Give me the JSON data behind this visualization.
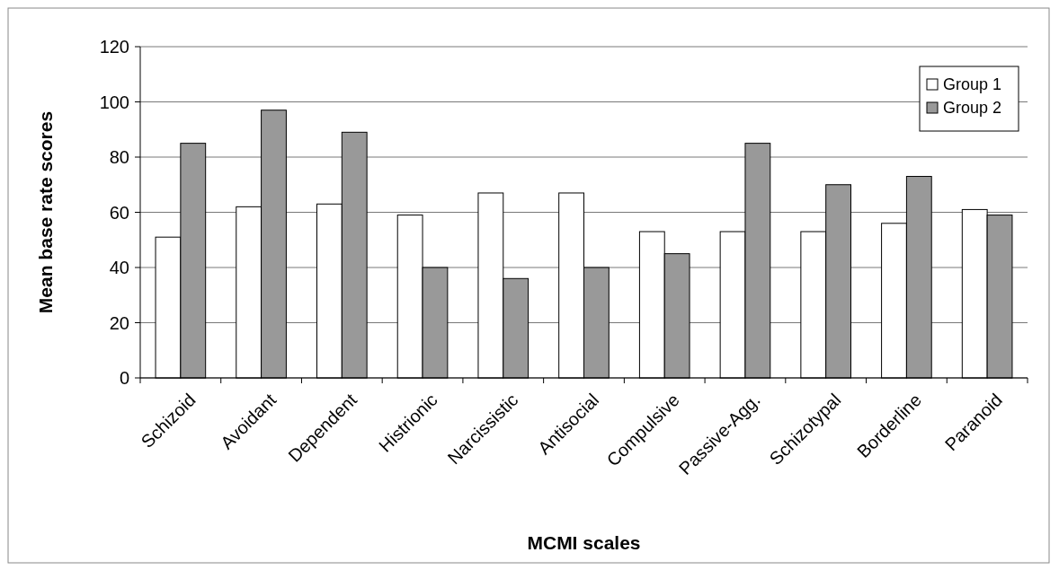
{
  "chart_data": {
    "type": "bar",
    "xlabel": "MCMI scales",
    "ylabel": "Mean base rate scores",
    "categories": [
      "Schizoid",
      "Avoidant",
      "Dependent",
      "Histrionic",
      "Narcissistic",
      "Antisocial",
      "Compulsive",
      "Passive-Agg.",
      "Schizotypal",
      "Borderline",
      "Paranoid"
    ],
    "series": [
      {
        "name": "Group 1",
        "color": "#ffffff",
        "values": [
          51,
          62,
          63,
          59,
          67,
          67,
          53,
          53,
          53,
          56,
          61
        ]
      },
      {
        "name": "Group 2",
        "color": "#999999",
        "values": [
          85,
          97,
          89,
          40,
          36,
          40,
          45,
          85,
          70,
          73,
          59
        ]
      }
    ],
    "ylim": [
      0,
      120
    ],
    "yticks": [
      0,
      20,
      40,
      60,
      80,
      100,
      120
    ],
    "grid": "y",
    "legend": "top right"
  }
}
